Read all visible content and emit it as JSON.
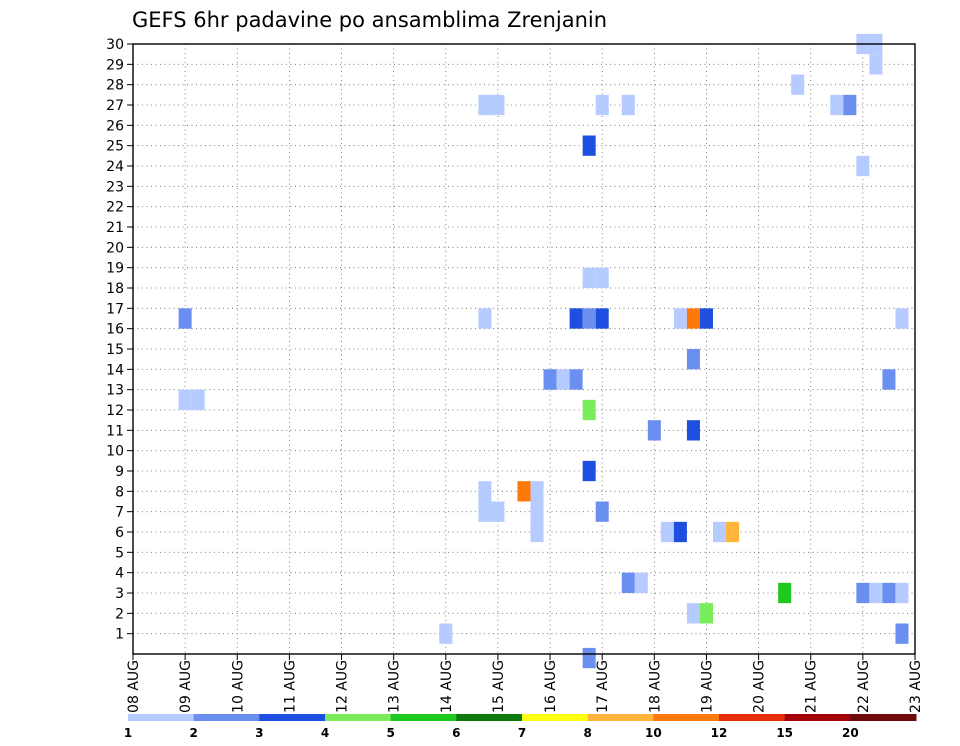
{
  "chart_data": {
    "type": "heatmap",
    "title": "GEFS 6hr padavine po ansamblima Zrenjanin",
    "xlabel": "",
    "ylabel": "",
    "x_tick_labels": [
      "08 AUG",
      "09 AUG",
      "10 AUG",
      "11 AUG",
      "12 AUG",
      "13 AUG",
      "14 AUG",
      "15 AUG",
      "16 AUG",
      "17 AUG",
      "18 AUG",
      "19 AUG",
      "20 AUG",
      "21 AUG",
      "22 AUG",
      "23 AUG"
    ],
    "x_range_days": [
      8,
      23
    ],
    "y_tick_labels": [
      "1",
      "2",
      "3",
      "4",
      "5",
      "6",
      "7",
      "8",
      "9",
      "10",
      "11",
      "12",
      "13",
      "14",
      "15",
      "16",
      "17",
      "18",
      "19",
      "20",
      "21",
      "22",
      "23",
      "24",
      "25",
      "26",
      "27",
      "28",
      "29",
      "30"
    ],
    "y_range": [
      0,
      30
    ],
    "grid": true,
    "legend_position": "bottom",
    "colorbar": {
      "colors": [
        "#b6cbff",
        "#6a8ff0",
        "#1f4fe0",
        "#78ec5a",
        "#1ec81e",
        "#0d7a0d",
        "#ffff14",
        "#ffb43c",
        "#ff780a",
        "#e62d0a",
        "#a5000a",
        "#6e0a0a"
      ],
      "labels": [
        "1",
        "2",
        "3",
        "4",
        "5",
        "6",
        "7",
        "8",
        "10",
        "12",
        "15",
        "20"
      ]
    },
    "cells": [
      {
        "day": 9.0,
        "member": 16.5,
        "class": 2
      },
      {
        "day": 9.0,
        "member": 12.5,
        "class": 1
      },
      {
        "day": 9.25,
        "member": 12.5,
        "class": 1
      },
      {
        "day": 14.0,
        "member": 1,
        "class": 1
      },
      {
        "day": 14.75,
        "member": 8,
        "class": 1
      },
      {
        "day": 14.75,
        "member": 7,
        "class": 1
      },
      {
        "day": 15.0,
        "member": 7,
        "class": 1
      },
      {
        "day": 14.75,
        "member": 16.5,
        "class": 1
      },
      {
        "day": 14.75,
        "member": 27,
        "class": 1
      },
      {
        "day": 15.0,
        "member": 27,
        "class": 1
      },
      {
        "day": 15.5,
        "member": 8,
        "class": 9
      },
      {
        "day": 15.75,
        "member": 8,
        "class": 1
      },
      {
        "day": 15.75,
        "member": 7,
        "class": 1
      },
      {
        "day": 15.75,
        "member": 6,
        "class": 1
      },
      {
        "day": 16.0,
        "member": 13.5,
        "class": 2
      },
      {
        "day": 16.25,
        "member": 13.5,
        "class": 1
      },
      {
        "day": 16.5,
        "member": 13.5,
        "class": 2
      },
      {
        "day": 16.5,
        "member": 16.5,
        "class": 3
      },
      {
        "day": 16.75,
        "member": 16.5,
        "class": 2
      },
      {
        "day": 17.0,
        "member": 16.5,
        "class": 3
      },
      {
        "day": 16.75,
        "member": 25,
        "class": 3
      },
      {
        "day": 16.75,
        "member": 18.5,
        "class": 1
      },
      {
        "day": 17.0,
        "member": 18.5,
        "class": 1
      },
      {
        "day": 16.75,
        "member": 12,
        "class": 4
      },
      {
        "day": 16.75,
        "member": 9,
        "class": 3
      },
      {
        "day": 17.0,
        "member": 7,
        "class": 2
      },
      {
        "day": 17.0,
        "member": 27,
        "class": 1
      },
      {
        "day": 17.5,
        "member": 27,
        "class": 1
      },
      {
        "day": 16.75,
        "member": -0.2,
        "class": 2
      },
      {
        "day": 17.5,
        "member": 3.5,
        "class": 2
      },
      {
        "day": 17.75,
        "member": 3.5,
        "class": 1
      },
      {
        "day": 18.0,
        "member": 11,
        "class": 2
      },
      {
        "day": 18.25,
        "member": 6,
        "class": 1
      },
      {
        "day": 18.5,
        "member": 6,
        "class": 3
      },
      {
        "day": 18.5,
        "member": 16.5,
        "class": 1
      },
      {
        "day": 18.75,
        "member": 16.5,
        "class": 9
      },
      {
        "day": 19.0,
        "member": 16.5,
        "class": 3
      },
      {
        "day": 18.75,
        "member": 14.5,
        "class": 2
      },
      {
        "day": 18.75,
        "member": 11,
        "class": 3
      },
      {
        "day": 18.75,
        "member": 2,
        "class": 1
      },
      {
        "day": 19.0,
        "member": 2,
        "class": 4
      },
      {
        "day": 19.25,
        "member": 6,
        "class": 1
      },
      {
        "day": 19.5,
        "member": 6,
        "class": 8
      },
      {
        "day": 20.5,
        "member": 3,
        "class": 5
      },
      {
        "day": 20.75,
        "member": 28,
        "class": 1
      },
      {
        "day": 21.5,
        "member": 27,
        "class": 1
      },
      {
        "day": 21.75,
        "member": 27,
        "class": 2
      },
      {
        "day": 22.0,
        "member": 30,
        "class": 1
      },
      {
        "day": 22.25,
        "member": 30,
        "class": 1
      },
      {
        "day": 22.25,
        "member": 29,
        "class": 1
      },
      {
        "day": 22.0,
        "member": 24,
        "class": 1
      },
      {
        "day": 22.5,
        "member": 13.5,
        "class": 2
      },
      {
        "day": 22.0,
        "member": 3,
        "class": 2
      },
      {
        "day": 22.25,
        "member": 3,
        "class": 1
      },
      {
        "day": 22.5,
        "member": 3,
        "class": 2
      },
      {
        "day": 22.75,
        "member": 3,
        "class": 1
      },
      {
        "day": 22.75,
        "member": 16.5,
        "class": 1
      },
      {
        "day": 22.75,
        "member": 1,
        "class": 2
      }
    ]
  }
}
